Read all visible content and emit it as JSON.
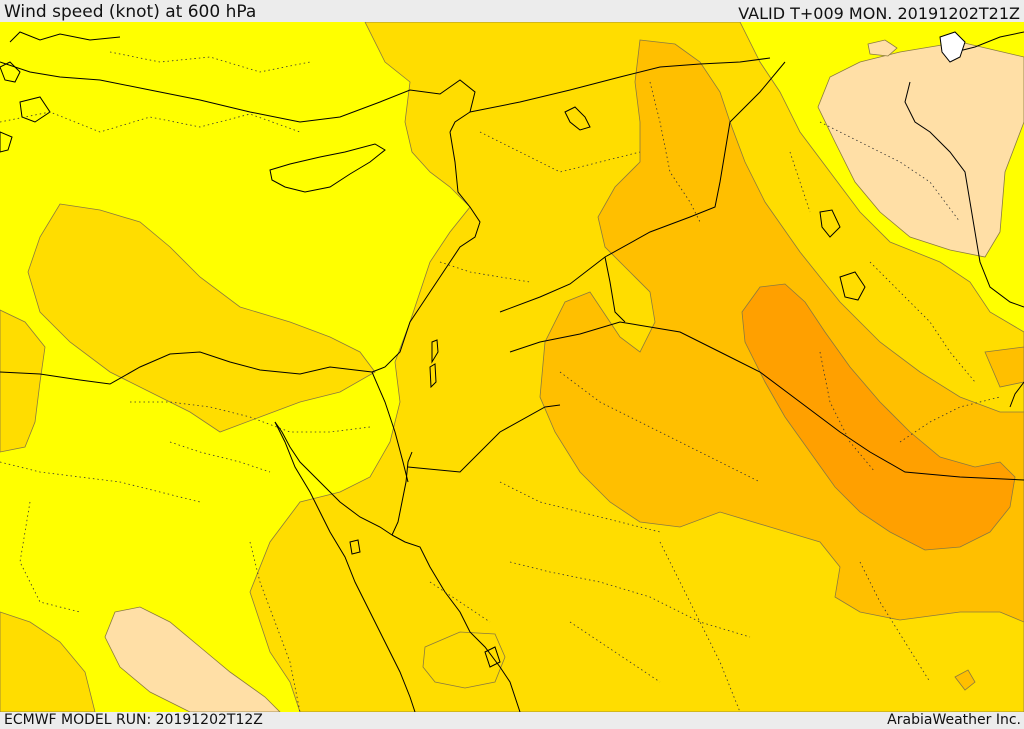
{
  "header": {
    "title": "Wind speed (knot) at 600 hPa",
    "valid": "VALID T+009 MON. 20191202T21Z"
  },
  "footer": {
    "model_run": "ECMWF MODEL RUN: 20191202T12Z",
    "credit": "ArabiaWeather Inc."
  },
  "colors": {
    "band_1": "#ffff00",
    "band_2": "#ffdd00",
    "band_3": "#ffbf00",
    "band_4": "#ffa000",
    "pale": "#ffdfa6",
    "contour": "#8a7a40",
    "coast": "#000000"
  }
}
